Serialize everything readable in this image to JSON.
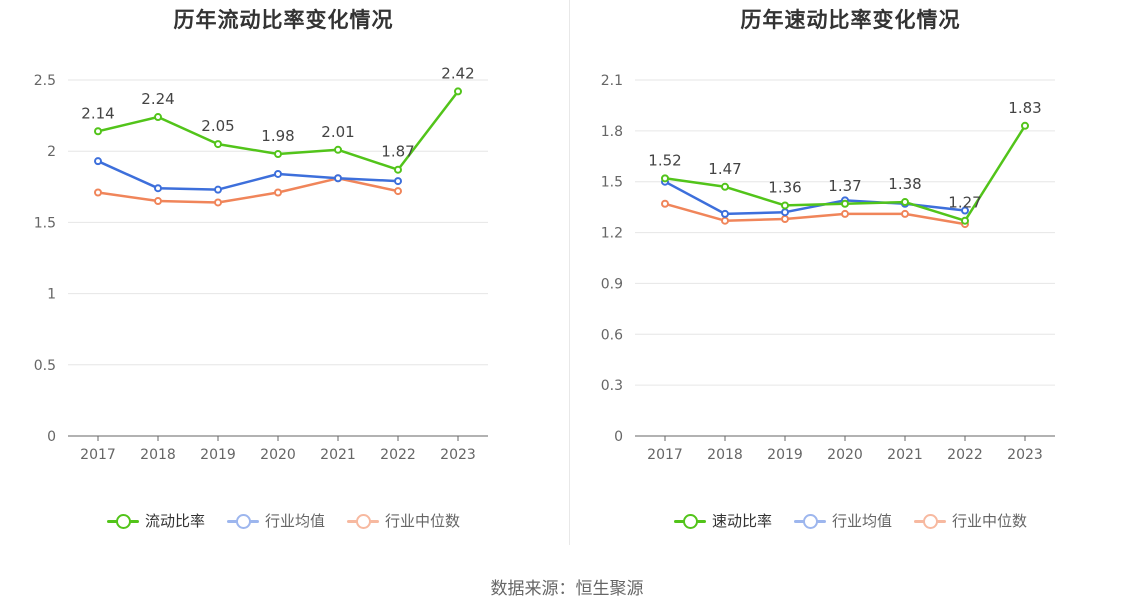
{
  "source_label": "数据来源：恒生聚源",
  "colors": {
    "main": "#52c41a",
    "avg": "#3d6fdb",
    "median": "#f0855a",
    "grid": "#e6e6e6",
    "axis": "#666666"
  },
  "chart_data": [
    {
      "type": "line",
      "title": "历年流动比率变化情况",
      "categories": [
        "2017",
        "2018",
        "2019",
        "2020",
        "2021",
        "2022",
        "2023"
      ],
      "ylim": [
        0,
        2.5
      ],
      "yticks": [
        "0",
        "0.5",
        "1",
        "1.5",
        "2",
        "2.5"
      ],
      "ytick_values": [
        0,
        0.5,
        1,
        1.5,
        2,
        2.5
      ],
      "grid": true,
      "legend_position": "bottom",
      "series": [
        {
          "name": "流动比率",
          "key": "main",
          "values": [
            2.14,
            2.24,
            2.05,
            1.98,
            2.01,
            1.87,
            2.42
          ],
          "labels": [
            "2.14",
            "2.24",
            "2.05",
            "1.98",
            "2.01",
            "1.87",
            "2.42"
          ]
        },
        {
          "name": "行业均值",
          "key": "avg",
          "values": [
            1.93,
            1.74,
            1.73,
            1.84,
            1.81,
            1.79,
            null
          ]
        },
        {
          "name": "行业中位数",
          "key": "median",
          "values": [
            1.71,
            1.65,
            1.64,
            1.71,
            1.81,
            1.72,
            null
          ]
        }
      ]
    },
    {
      "type": "line",
      "title": "历年速动比率变化情况",
      "categories": [
        "2017",
        "2018",
        "2019",
        "2020",
        "2021",
        "2022",
        "2023"
      ],
      "ylim": [
        0,
        2.1
      ],
      "yticks": [
        "0",
        "0.3",
        "0.6",
        "0.9",
        "1.2",
        "1.5",
        "1.8",
        "2.1"
      ],
      "ytick_values": [
        0,
        0.3,
        0.6,
        0.9,
        1.2,
        1.5,
        1.8,
        2.1
      ],
      "grid": true,
      "legend_position": "bottom",
      "series": [
        {
          "name": "速动比率",
          "key": "main",
          "values": [
            1.52,
            1.47,
            1.36,
            1.37,
            1.38,
            1.27,
            1.83
          ],
          "labels": [
            "1.52",
            "1.47",
            "1.36",
            "1.37",
            "1.38",
            "1.27",
            "1.83"
          ]
        },
        {
          "name": "行业均值",
          "key": "avg",
          "values": [
            1.5,
            1.31,
            1.32,
            1.39,
            1.37,
            1.33,
            null
          ]
        },
        {
          "name": "行业中位数",
          "key": "median",
          "values": [
            1.37,
            1.27,
            1.28,
            1.31,
            1.31,
            1.25,
            null
          ]
        }
      ]
    }
  ]
}
